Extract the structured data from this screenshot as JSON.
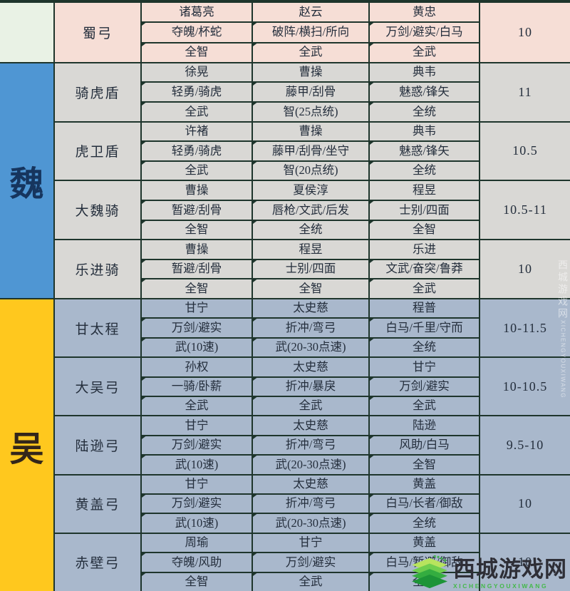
{
  "watermark": {
    "site_name": "西城游戏网",
    "site_romanized": "XICHENGYOUXIWANG"
  },
  "colors": {
    "border": "#1e352c",
    "text": "#242e3c",
    "watermark_green": "#45b84b"
  },
  "table": {
    "factions": [
      {
        "label": "",
        "faction_bg": "#e9f2e5",
        "label_color": "#2a3a2e",
        "row_bg": "#f6ded6",
        "rows": [
          {
            "team": "蜀弓",
            "rating": "10",
            "heroes": [
              {
                "name": "诸葛亮",
                "skills": "夺魄/杯蛇",
                "stat": "全智"
              },
              {
                "name": "赵云",
                "skills": "破阵/横扫/所向",
                "stat": "全武"
              },
              {
                "name": "黄忠",
                "skills": "万剑/避实/白马",
                "stat": "全武"
              }
            ]
          }
        ]
      },
      {
        "label": "魏",
        "faction_bg": "#4f96d3",
        "label_color": "#16355e",
        "row_bg": "#d9d8d5",
        "rows": [
          {
            "team": "骑虎盾",
            "rating": "11",
            "heroes": [
              {
                "name": "徐晃",
                "skills": "轻勇/骑虎",
                "stat": "全武"
              },
              {
                "name": "曹操",
                "skills": "藤甲/刮骨",
                "stat": "智(25点统)"
              },
              {
                "name": "典韦",
                "skills": "魅惑/锋矢",
                "stat": "全统"
              }
            ]
          },
          {
            "team": "虎卫盾",
            "rating": "10.5",
            "heroes": [
              {
                "name": "许褚",
                "skills": "轻勇/骑虎",
                "stat": "全武"
              },
              {
                "name": "曹操",
                "skills": "藤甲/刮骨/坐守",
                "stat": "智(20点统)"
              },
              {
                "name": "典韦",
                "skills": "魅惑/锋矢",
                "stat": "全统"
              }
            ]
          },
          {
            "team": "大魏骑",
            "rating": "10.5-11",
            "heroes": [
              {
                "name": "曹操",
                "skills": "暂避/刮骨",
                "stat": "全智"
              },
              {
                "name": "夏侯淳",
                "skills": "唇枪/文武/后发",
                "stat": "全统"
              },
              {
                "name": "程昱",
                "skills": "士别/四面",
                "stat": "全智"
              }
            ]
          },
          {
            "team": "乐进骑",
            "rating": "10",
            "heroes": [
              {
                "name": "曹操",
                "skills": "暂避/刮骨",
                "stat": "全智"
              },
              {
                "name": "程昱",
                "skills": "士别/四面",
                "stat": "全智"
              },
              {
                "name": "乐进",
                "skills": "文武/奋突/鲁莽",
                "stat": "全武"
              }
            ]
          }
        ]
      },
      {
        "label": "吴",
        "faction_bg": "#ffc81e",
        "label_color": "#33261a",
        "row_bg": "#a9b8cc",
        "rows": [
          {
            "team": "甘太程",
            "rating": "10-11.5",
            "heroes": [
              {
                "name": "甘宁",
                "skills": "万剑/避实",
                "stat": "武(10速)"
              },
              {
                "name": "太史慈",
                "skills": "折冲/弯弓",
                "stat": "武(20-30点速)"
              },
              {
                "name": "程普",
                "skills": "白马/千里/守而",
                "stat": "全统"
              }
            ]
          },
          {
            "team": "大吴弓",
            "rating": "10-10.5",
            "heroes": [
              {
                "name": "孙权",
                "skills": "一骑/卧薪",
                "stat": "全武"
              },
              {
                "name": "太史慈",
                "skills": "折冲/暴戾",
                "stat": "全武"
              },
              {
                "name": "甘宁",
                "skills": "万剑/避实",
                "stat": "全武"
              }
            ]
          },
          {
            "team": "陆逊弓",
            "rating": "9.5-10",
            "heroes": [
              {
                "name": "甘宁",
                "skills": "万剑/避实",
                "stat": "武(10速)"
              },
              {
                "name": "太史慈",
                "skills": "折冲/弯弓",
                "stat": "武(20-30点速)"
              },
              {
                "name": "陆逊",
                "skills": "风助/白马",
                "stat": "全智"
              }
            ]
          },
          {
            "team": "黄盖弓",
            "rating": "10",
            "heroes": [
              {
                "name": "甘宁",
                "skills": "万剑/避实",
                "stat": "武(10速)"
              },
              {
                "name": "太史慈",
                "skills": "折冲/弯弓",
                "stat": "武(20-30点速)"
              },
              {
                "name": "黄盖",
                "skills": "白马/长者/御敌",
                "stat": "全统"
              }
            ]
          },
          {
            "team": "赤壁弓",
            "rating": "10",
            "heroes": [
              {
                "name": "周瑜",
                "skills": "夺魄/风助",
                "stat": "全智"
              },
              {
                "name": "甘宁",
                "skills": "万剑/避实",
                "stat": "全武"
              },
              {
                "name": "黄盖",
                "skills": "白马/暂避/御敌",
                "stat": "全统"
              }
            ]
          }
        ]
      }
    ]
  }
}
